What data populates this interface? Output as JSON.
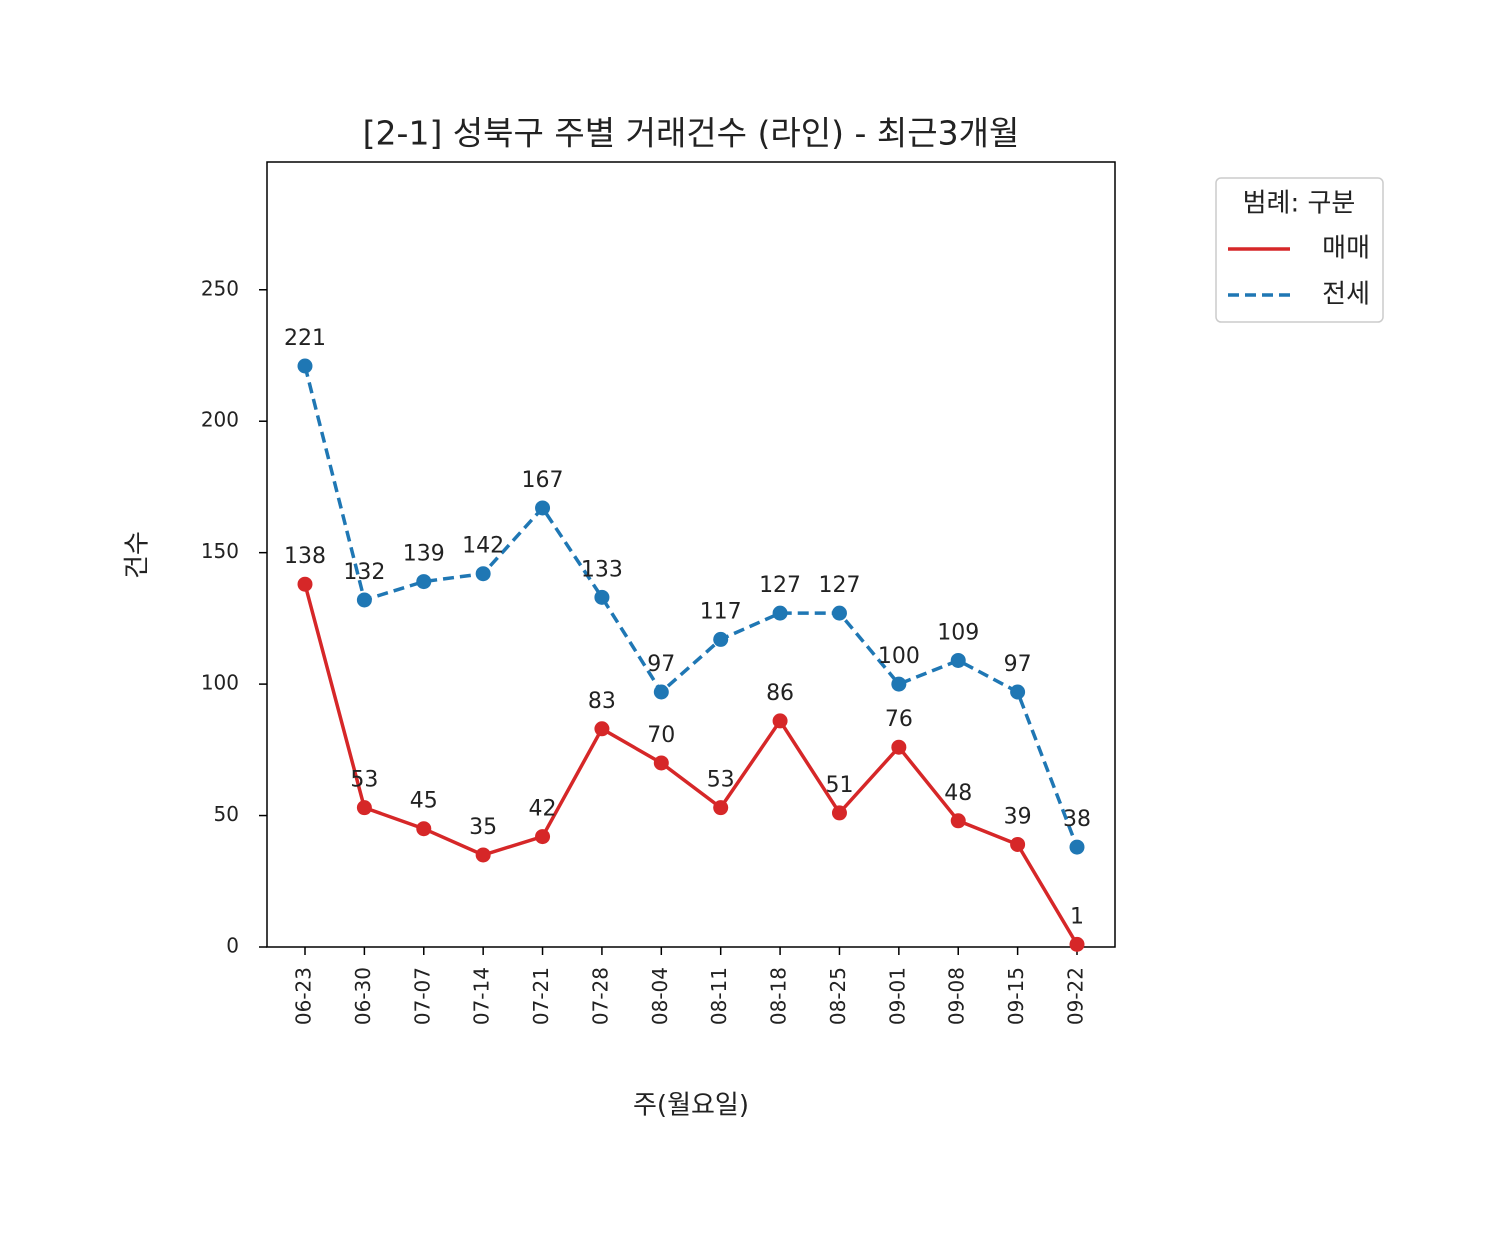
{
  "chart_data": {
    "type": "line",
    "title": "[2-1] 성북구 주별 거래건수 (라인) - 최근3개월",
    "x_label": "주(월요일)",
    "y_label": "건수",
    "categories": [
      "06-23",
      "06-30",
      "07-07",
      "07-14",
      "07-21",
      "07-28",
      "08-04",
      "08-11",
      "08-18",
      "08-25",
      "09-01",
      "09-08",
      "09-15",
      "09-22"
    ],
    "series": [
      {
        "name": "매매",
        "color": "#d62728",
        "linestyle": "solid",
        "values": [
          138,
          53,
          45,
          35,
          42,
          83,
          70,
          53,
          86,
          51,
          76,
          48,
          39,
          1
        ]
      },
      {
        "name": "전세",
        "color": "#1f77b4",
        "linestyle": "dashed",
        "values": [
          221,
          132,
          139,
          142,
          167,
          133,
          97,
          117,
          127,
          127,
          100,
          109,
          97,
          38
        ]
      }
    ],
    "ylim": [
      0,
      298.6
    ],
    "yticks": [
      0,
      50,
      100,
      150,
      200,
      250
    ],
    "legend_title": "범례: 구분",
    "legend": "outside upper right",
    "grid": false
  }
}
